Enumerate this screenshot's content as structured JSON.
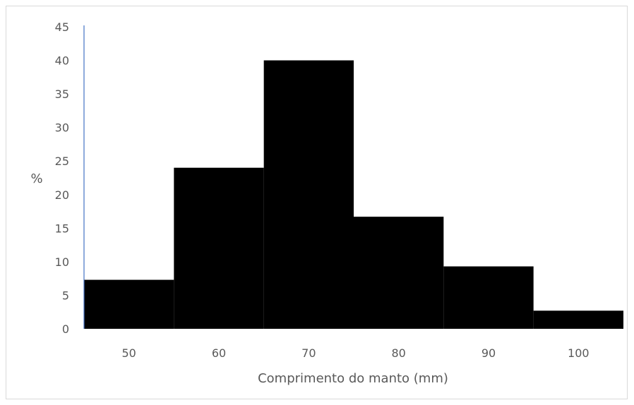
{
  "chart_data": {
    "type": "bar",
    "title": "",
    "xlabel": "Comprimento do manto (mm)",
    "ylabel": "%",
    "categories": [
      "50",
      "60",
      "70",
      "80",
      "90",
      "100"
    ],
    "values": [
      7.3,
      24,
      40,
      16.7,
      9.3,
      2.7
    ],
    "xlim": [
      45,
      105
    ],
    "ylim": [
      0,
      45
    ],
    "y_ticks": [
      "0",
      "5",
      "10",
      "15",
      "20",
      "25",
      "30",
      "35",
      "40",
      "45"
    ],
    "bar_color": "#000000",
    "axis_color": "#4472c4",
    "grid": false,
    "legend": "none"
  }
}
